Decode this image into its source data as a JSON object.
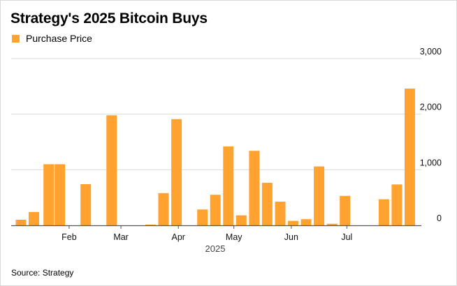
{
  "title": "Strategy's 2025 Bitcoin Buys",
  "source": "Source: Strategy",
  "colors": {
    "bar": "#FFA22F",
    "grid": "#d9d9d9",
    "axis": "#555555"
  },
  "chart_data": {
    "type": "bar",
    "title": "Strategy's 2025 Bitcoin Buys",
    "legend": {
      "placement": "top-left",
      "entries": [
        "Purchase Price"
      ]
    },
    "x_year_label": "2025",
    "x_range": [
      "2025-01-06",
      "2025-08-11"
    ],
    "x_ticks": [
      {
        "label": "Feb",
        "date": "2025-02-01"
      },
      {
        "label": "Mar",
        "date": "2025-03-01"
      },
      {
        "label": "Apr",
        "date": "2025-04-01"
      },
      {
        "label": "May",
        "date": "2025-05-01"
      },
      {
        "label": "Jun",
        "date": "2025-06-01"
      },
      {
        "label": "Jul",
        "date": "2025-07-01"
      }
    ],
    "y_ticks": [
      "0",
      "1,000",
      "2,000",
      "3,000"
    ],
    "ylim": [
      0,
      3000
    ],
    "y_axis_side": "right",
    "grid": true,
    "series": [
      {
        "name": "Purchase Price",
        "dates": [
          "2025-01-06",
          "2025-01-13",
          "2025-01-21",
          "2025-01-27",
          "2025-02-10",
          "2025-02-24",
          "2025-03-17",
          "2025-03-24",
          "2025-03-31",
          "2025-04-14",
          "2025-04-21",
          "2025-04-28",
          "2025-05-05",
          "2025-05-12",
          "2025-05-19",
          "2025-05-26",
          "2025-06-02",
          "2025-06-09",
          "2025-06-16",
          "2025-06-23",
          "2025-06-30",
          "2025-07-07",
          "2025-07-21",
          "2025-07-28",
          "2025-08-04"
        ],
        "values": [
          100,
          240,
          1100,
          1100,
          740,
          1980,
          7,
          580,
          1910,
          285,
          550,
          1420,
          180,
          1340,
          765,
          425,
          80,
          110,
          1060,
          28,
          530,
          0,
          470,
          735,
          2460
        ]
      }
    ]
  }
}
